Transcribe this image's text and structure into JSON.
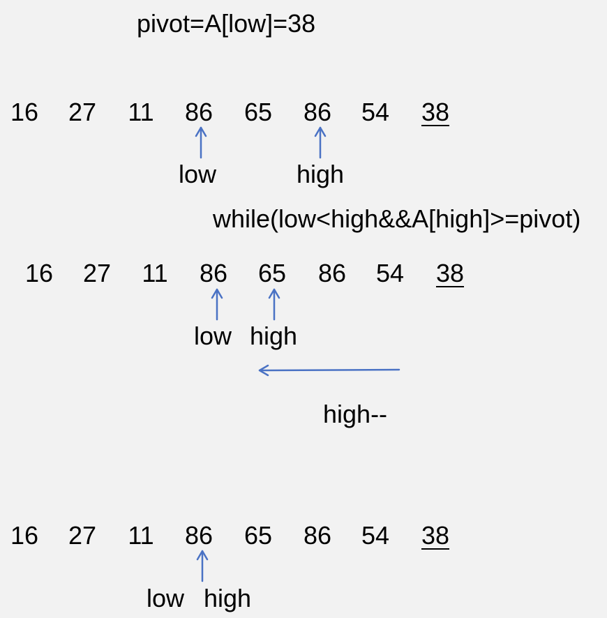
{
  "pivot_label": "pivot=A[low]=38",
  "while_condition": "while(low<high&&A[high]>=pivot)",
  "high_decrement_label": "high--",
  "rows": [
    {
      "values": [
        "16",
        "27",
        "11",
        "86",
        "65",
        "86",
        "54",
        "38"
      ],
      "low_label": "low",
      "high_label": "high"
    },
    {
      "values": [
        "16",
        "27",
        "11",
        "86",
        "65",
        "86",
        "54",
        "38"
      ],
      "low_label": "low",
      "high_label": "high"
    },
    {
      "values": [
        "16",
        "27",
        "11",
        "86",
        "65",
        "86",
        "54",
        "38"
      ],
      "low_label": "low",
      "high_label": "high"
    }
  ],
  "colors": {
    "arrow": "#4a72c4",
    "background": "#f2f2f2"
  }
}
